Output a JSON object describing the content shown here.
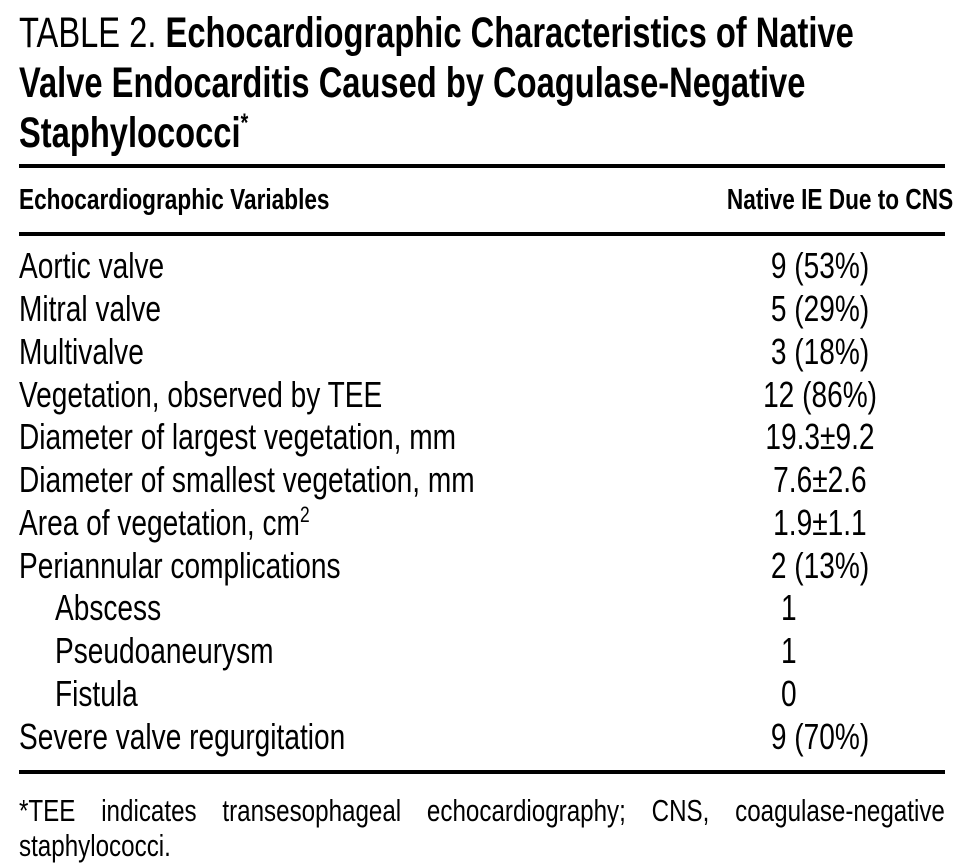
{
  "title": {
    "label": "TABLE 2.",
    "line1_rest": " Echocardiographic Characteristics of Native",
    "line2": "Valve Endocarditis Caused by Coagulase-Negative",
    "line3": "Staphylococci",
    "footnote_marker": "*"
  },
  "table": {
    "columns": {
      "variables": "Echocardiographic Variables",
      "values": "Native IE Due to CNS"
    },
    "rows": [
      {
        "label": "Aortic valve",
        "value": "9 (53%)",
        "indent": false,
        "value_left": false
      },
      {
        "label": "Mitral valve",
        "value": "5 (29%)",
        "indent": false,
        "value_left": false
      },
      {
        "label": "Multivalve",
        "value": "3 (18%)",
        "indent": false,
        "value_left": false
      },
      {
        "label": "Vegetation, observed by TEE",
        "value": "12 (86%)",
        "indent": false,
        "value_left": false
      },
      {
        "label": "Diameter of largest vegetation, mm",
        "value": "19.3±9.2",
        "indent": false,
        "value_left": false
      },
      {
        "label": "Diameter of smallest vegetation, mm",
        "value": "7.6±2.6",
        "indent": false,
        "value_left": false
      },
      {
        "label": "Area of vegetation, cm",
        "label_sup": "2",
        "value": "1.9±1.1",
        "indent": false,
        "value_left": false
      },
      {
        "label": "Periannular complications",
        "value": "2 (13%)",
        "indent": false,
        "value_left": false
      },
      {
        "label": "Abscess",
        "value": "1",
        "indent": true,
        "value_left": true
      },
      {
        "label": "Pseudoaneurysm",
        "value": "1",
        "indent": true,
        "value_left": true
      },
      {
        "label": "Fistula",
        "value": "0",
        "indent": true,
        "value_left": true
      },
      {
        "label": "Severe valve regurgitation",
        "value": "9 (70%)",
        "indent": false,
        "value_left": false
      }
    ]
  },
  "footnote": {
    "line1": "*TEE indicates transesophageal echocardiography; CNS, coagulase-negative",
    "line2": "staphylococci."
  },
  "colors": {
    "text": "#000000",
    "background": "#ffffff",
    "rule": "#000000"
  }
}
